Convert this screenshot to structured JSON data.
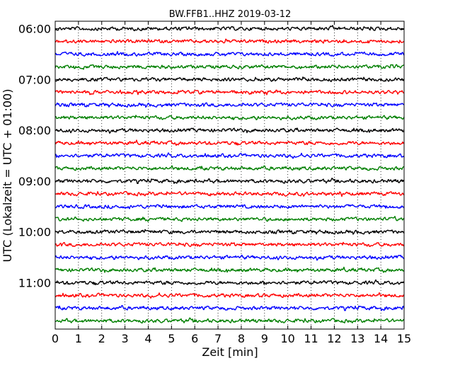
{
  "chart_data": {
    "type": "line",
    "title": "BW.FFB1..HHZ 2019-03-12",
    "xlabel": "Zeit  [min]",
    "ylabel": "UTC (Lokalzeit = UTC + 01:00)",
    "xlim": [
      0,
      15
    ],
    "x_ticks": [
      0,
      1,
      2,
      3,
      4,
      5,
      6,
      7,
      8,
      9,
      10,
      11,
      12,
      13,
      14,
      15
    ],
    "x_tick_labels": [
      "0",
      "1",
      "2",
      "3",
      "4",
      "5",
      "6",
      "7",
      "8",
      "9",
      "10",
      "11",
      "12",
      "13",
      "14",
      "15"
    ],
    "y_tick_labels": [
      "06:00",
      "07:00",
      "08:00",
      "09:00",
      "10:00",
      "11:00"
    ],
    "grid": "vertical dotted",
    "trace_colors": [
      "#000000",
      "#ff0000",
      "#0000ff",
      "#007f00"
    ],
    "traces": [
      {
        "start": "06:00",
        "color": "#000000"
      },
      {
        "start": "06:15",
        "color": "#ff0000"
      },
      {
        "start": "06:30",
        "color": "#0000ff"
      },
      {
        "start": "06:45",
        "color": "#007f00"
      },
      {
        "start": "07:00",
        "color": "#000000"
      },
      {
        "start": "07:15",
        "color": "#ff0000"
      },
      {
        "start": "07:30",
        "color": "#0000ff"
      },
      {
        "start": "07:45",
        "color": "#007f00"
      },
      {
        "start": "08:00",
        "color": "#000000"
      },
      {
        "start": "08:15",
        "color": "#ff0000"
      },
      {
        "start": "08:30",
        "color": "#0000ff"
      },
      {
        "start": "08:45",
        "color": "#007f00"
      },
      {
        "start": "09:00",
        "color": "#000000"
      },
      {
        "start": "09:15",
        "color": "#ff0000"
      },
      {
        "start": "09:30",
        "color": "#0000ff"
      },
      {
        "start": "09:45",
        "color": "#007f00"
      },
      {
        "start": "10:00",
        "color": "#000000"
      },
      {
        "start": "10:15",
        "color": "#ff0000"
      },
      {
        "start": "10:30",
        "color": "#0000ff"
      },
      {
        "start": "10:45",
        "color": "#007f00"
      },
      {
        "start": "11:00",
        "color": "#000000"
      },
      {
        "start": "11:15",
        "color": "#ff0000"
      },
      {
        "start": "11:30",
        "color": "#0000ff"
      },
      {
        "start": "11:45",
        "color": "#007f00"
      }
    ]
  }
}
